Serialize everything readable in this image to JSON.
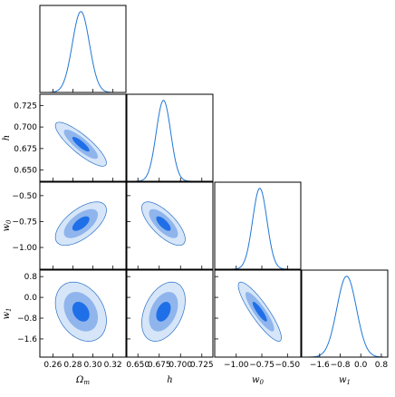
{
  "chart_data": {
    "type": "triangle-corner",
    "colors": {
      "line": "#1f77d6",
      "contour_inner": "#1f6fe8",
      "contour_middle": "#8fb5ec",
      "contour_outer": "#d6e6f8",
      "contour_edge": "#2a6fc9"
    },
    "parameters": [
      {
        "id": "om",
        "label": "Ω",
        "sub": "m",
        "range": [
          0.247,
          0.333
        ],
        "ticks": [
          0.26,
          0.28,
          0.3,
          0.32
        ],
        "tick_labels": [
          "0.26",
          "0.28",
          "0.30",
          "0.32"
        ],
        "mean": 0.288,
        "sigma": 0.0085
      },
      {
        "id": "h",
        "label": "h",
        "sub": "",
        "range": [
          0.637,
          0.738
        ],
        "ticks": [
          0.65,
          0.675,
          0.7,
          0.725
        ],
        "tick_labels": [
          "0.650",
          "0.675",
          "0.700",
          "0.725"
        ],
        "mean": 0.68,
        "sigma": 0.0085
      },
      {
        "id": "w0",
        "label": "w",
        "sub": "0",
        "range": [
          -1.21,
          -0.37
        ],
        "ticks": [
          -1.0,
          -0.75,
          -0.5
        ],
        "tick_labels": [
          "−1.00",
          "−0.75",
          "−0.50"
        ],
        "mean": -0.77,
        "sigma": 0.07
      },
      {
        "id": "w1",
        "label": "w",
        "sub": "1",
        "range": [
          -2.3,
          1.05
        ],
        "ticks": [
          -1.6,
          -0.8,
          0.0,
          0.8
        ],
        "tick_labels": [
          "−1.6",
          "−0.8",
          "0.0",
          "0.8"
        ],
        "mean": -0.55,
        "sigma": 0.38
      }
    ],
    "correlations": [
      {
        "pair": [
          "om",
          "h"
        ],
        "rho": -0.85
      },
      {
        "pair": [
          "om",
          "w0"
        ],
        "rho": 0.62
      },
      {
        "pair": [
          "h",
          "w0"
        ],
        "rho": -0.72
      },
      {
        "pair": [
          "om",
          "w1"
        ],
        "rho": -0.3
      },
      {
        "pair": [
          "h",
          "w1"
        ],
        "rho": 0.38
      },
      {
        "pair": [
          "w0",
          "w1"
        ],
        "rho": -0.88
      }
    ],
    "contour_levels_sigma": [
      1,
      2,
      3
    ]
  }
}
